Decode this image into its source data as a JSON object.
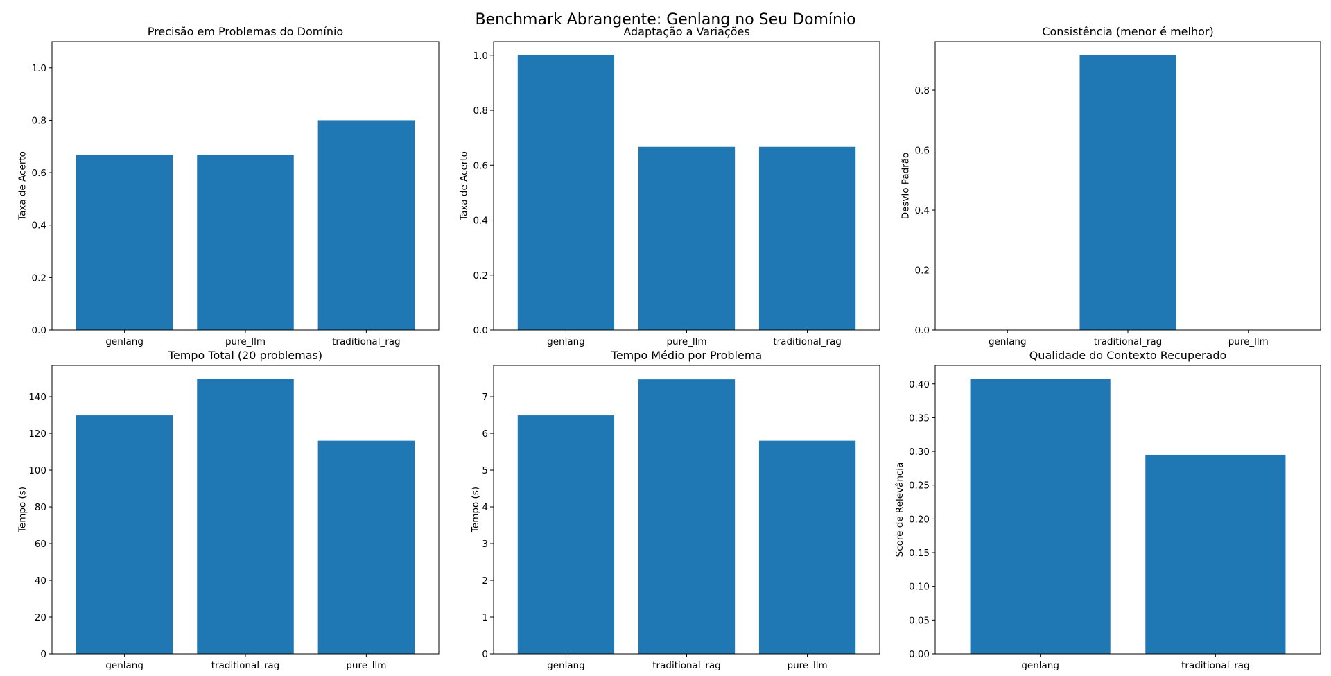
{
  "figure_title": "Benchmark Abrangente: Genlang no Seu Domínio",
  "chart_data": [
    {
      "type": "bar",
      "title": "Precisão em Problemas do Domínio",
      "xlabel": "",
      "ylabel": "Taxa de Acerto",
      "categories": [
        "genlang",
        "pure_llm",
        "traditional_rag"
      ],
      "values": [
        0.667,
        0.667,
        0.8
      ],
      "ylim": [
        0,
        1.1
      ],
      "yticks": [
        0.0,
        0.2,
        0.4,
        0.6,
        0.8,
        1.0
      ],
      "ytick_labels": [
        "0.0",
        "0.2",
        "0.4",
        "0.6",
        "0.8",
        "1.0"
      ],
      "color": "#1f77b4",
      "grid": false
    },
    {
      "type": "bar",
      "title": "Adaptação a Variações",
      "xlabel": "",
      "ylabel": "Taxa de Acerto",
      "categories": [
        "genlang",
        "pure_llm",
        "traditional_rag"
      ],
      "values": [
        1.0,
        0.667,
        0.667
      ],
      "ylim": [
        0,
        1.05
      ],
      "yticks": [
        0.0,
        0.2,
        0.4,
        0.6,
        0.8,
        1.0
      ],
      "ytick_labels": [
        "0.0",
        "0.2",
        "0.4",
        "0.6",
        "0.8",
        "1.0"
      ],
      "color": "#1f77b4",
      "grid": false
    },
    {
      "type": "bar",
      "title": "Consistência (menor é melhor)",
      "xlabel": "",
      "ylabel": "Desvio Padrão",
      "categories": [
        "genlang",
        "traditional_rag",
        "pure_llm"
      ],
      "values": [
        0.0,
        0.916,
        0.0
      ],
      "ylim": [
        0,
        0.962
      ],
      "yticks": [
        0.0,
        0.2,
        0.4,
        0.6,
        0.8
      ],
      "ytick_labels": [
        "0.0",
        "0.2",
        "0.4",
        "0.6",
        "0.8"
      ],
      "color": "#1f77b4",
      "grid": false
    },
    {
      "type": "bar",
      "title": "Tempo Total (20 problemas)",
      "xlabel": "",
      "ylabel": "Tempo (s)",
      "categories": [
        "genlang",
        "traditional_rag",
        "pure_llm"
      ],
      "values": [
        129.8,
        149.5,
        116.0
      ],
      "ylim": [
        0,
        157
      ],
      "yticks": [
        0,
        20,
        40,
        60,
        80,
        100,
        120,
        140
      ],
      "ytick_labels": [
        "0",
        "20",
        "40",
        "60",
        "80",
        "100",
        "120",
        "140"
      ],
      "color": "#1f77b4",
      "grid": false
    },
    {
      "type": "bar",
      "title": "Tempo Médio por Problema",
      "xlabel": "",
      "ylabel": "Tempo (s)",
      "categories": [
        "genlang",
        "traditional_rag",
        "pure_llm"
      ],
      "values": [
        6.49,
        7.47,
        5.8
      ],
      "ylim": [
        0,
        7.85
      ],
      "yticks": [
        0,
        1,
        2,
        3,
        4,
        5,
        6,
        7
      ],
      "ytick_labels": [
        "0",
        "1",
        "2",
        "3",
        "4",
        "5",
        "6",
        "7"
      ],
      "color": "#1f77b4",
      "grid": false
    },
    {
      "type": "bar",
      "title": "Qualidade do Contexto Recuperado",
      "xlabel": "",
      "ylabel": "Score de Relevância",
      "categories": [
        "genlang",
        "traditional_rag"
      ],
      "values": [
        0.407,
        0.295
      ],
      "ylim": [
        0,
        0.4275
      ],
      "yticks": [
        0.0,
        0.05,
        0.1,
        0.15,
        0.2,
        0.25,
        0.3,
        0.35,
        0.4
      ],
      "ytick_labels": [
        "0.00",
        "0.05",
        "0.10",
        "0.15",
        "0.20",
        "0.25",
        "0.30",
        "0.35",
        "0.40"
      ],
      "color": "#1f77b4",
      "grid": false
    }
  ]
}
